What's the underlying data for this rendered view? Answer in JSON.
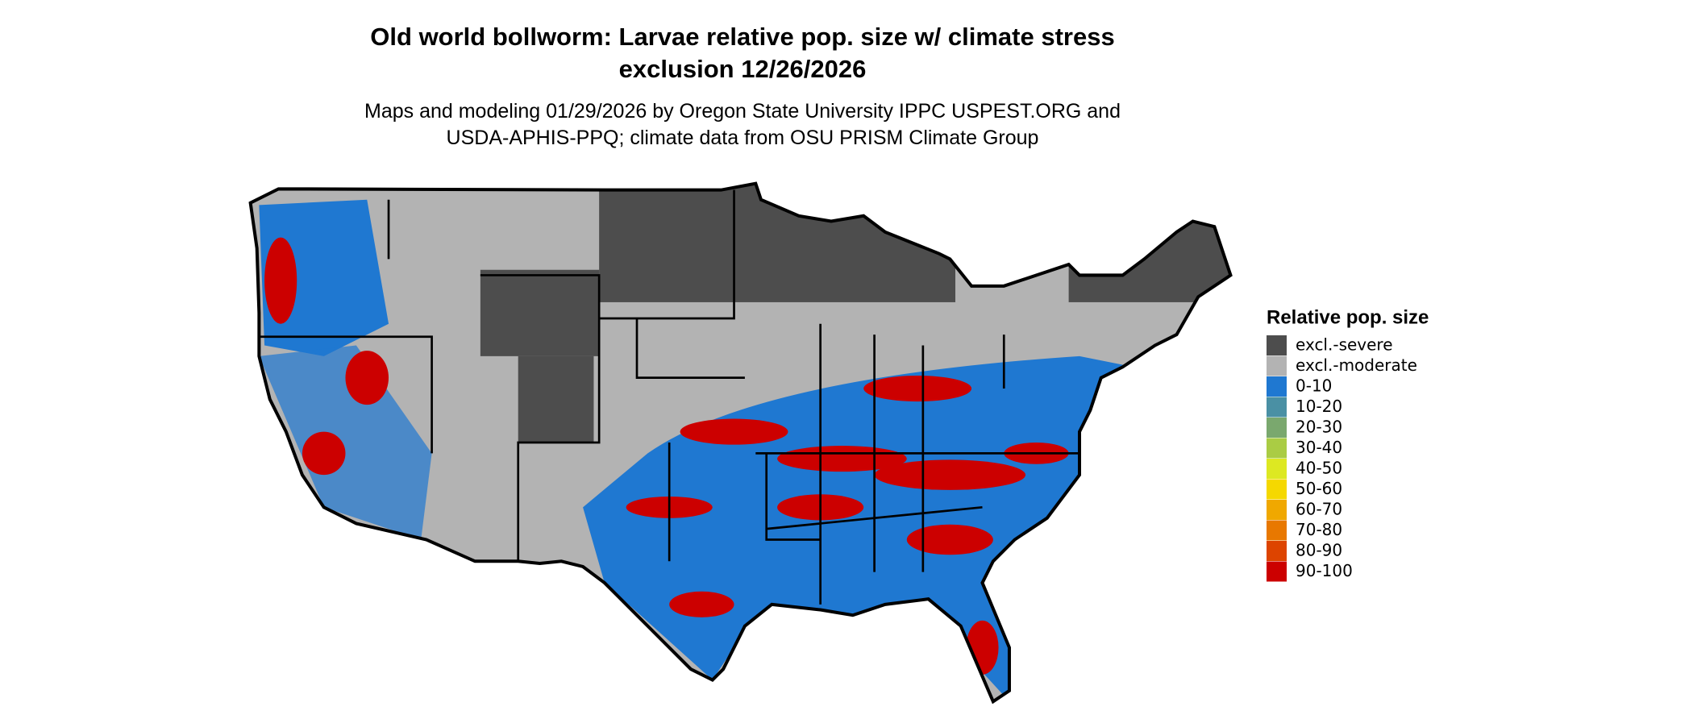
{
  "header": {
    "title_line1": "Old world bollworm: Larvae relative pop. size w/ climate stress",
    "title_line2": "exclusion 12/26/2026",
    "subtitle_line1": "Maps and modeling 01/29/2026 by Oregon State University IPPC USPEST.ORG and",
    "subtitle_line2": "USDA-APHIS-PPQ; climate data from OSU PRISM Climate Group"
  },
  "legend": {
    "title": "Relative pop. size",
    "items": [
      {
        "label": "excl.-severe",
        "color": "#4d4d4d"
      },
      {
        "label": "excl.-moderate",
        "color": "#b3b3b3"
      },
      {
        "label": "0-10",
        "color": "#1f78d1"
      },
      {
        "label": "10-20",
        "color": "#4a90a4"
      },
      {
        "label": "20-30",
        "color": "#7aa86e"
      },
      {
        "label": "30-40",
        "color": "#aacc44"
      },
      {
        "label": "40-50",
        "color": "#dde822"
      },
      {
        "label": "50-60",
        "color": "#f5d800"
      },
      {
        "label": "60-70",
        "color": "#f0a800"
      },
      {
        "label": "70-80",
        "color": "#e87800"
      },
      {
        "label": "80-90",
        "color": "#dd4400"
      },
      {
        "label": "90-100",
        "color": "#cc0000"
      }
    ]
  }
}
